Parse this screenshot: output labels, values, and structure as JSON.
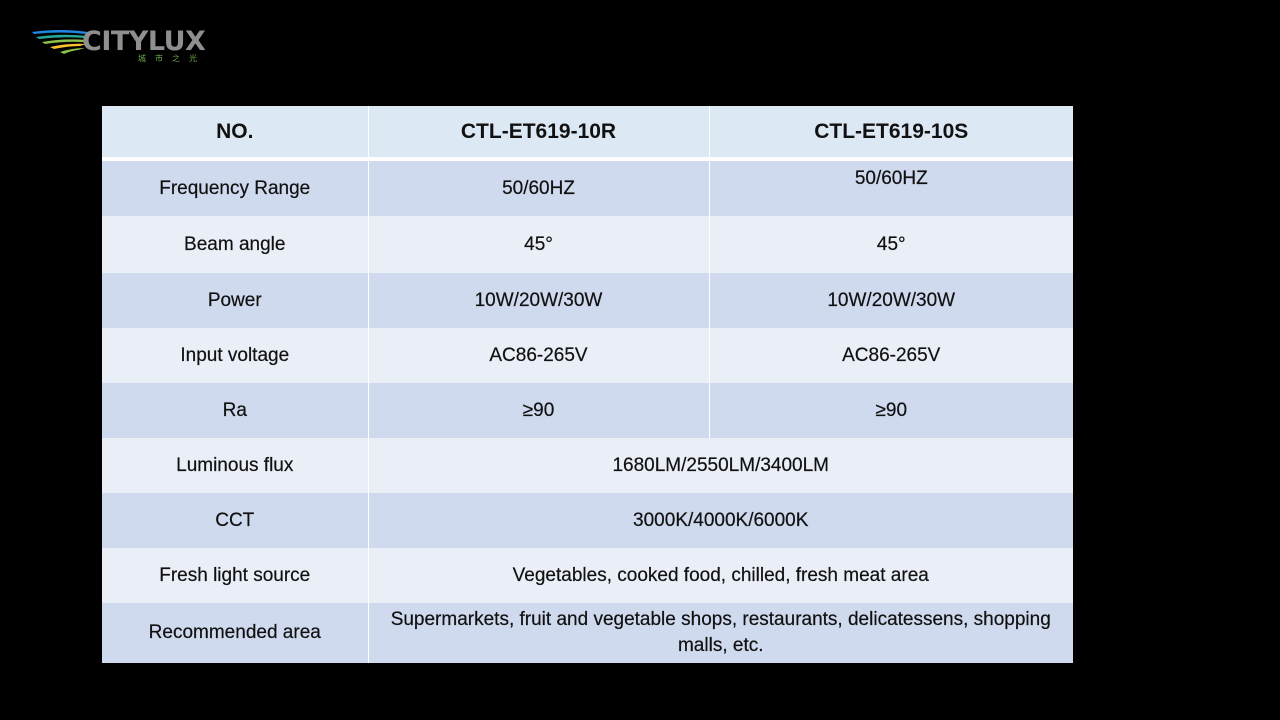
{
  "logo": {
    "name": "CITYLUX",
    "tagline": "城市之光",
    "colors": [
      "#1e88e5",
      "#26a69a",
      "#8bc34a",
      "#fbc02d"
    ]
  },
  "table": {
    "header": {
      "col1": "NO.",
      "col2": "CTL-ET619-10R",
      "col3": "CTL-ET619-10S"
    },
    "rows": [
      {
        "label": "Frequency Range",
        "r": "50/60HZ",
        "s": "50/60HZ"
      },
      {
        "label": "Beam angle",
        "r": "45°",
        "s": "45°"
      },
      {
        "label": "Power",
        "r": "10W/20W/30W",
        "s": "10W/20W/30W"
      },
      {
        "label": "Input voltage",
        "r": "AC86-265V",
        "s": "AC86-265V"
      },
      {
        "label": "Ra",
        "r": "≥90",
        "s": "≥90"
      },
      {
        "label": "Luminous flux",
        "value": "1680LM/2550LM/3400LM"
      },
      {
        "label": "CCT",
        "value": "3000K/4000K/6000K"
      },
      {
        "label": "Fresh light source",
        "value": "Vegetables, cooked food, chilled, fresh meat area"
      },
      {
        "label": "Recommended area",
        "value": "Supermarkets, fruit and vegetable shops, restaurants, delicatessens, shopping malls, etc."
      }
    ]
  }
}
